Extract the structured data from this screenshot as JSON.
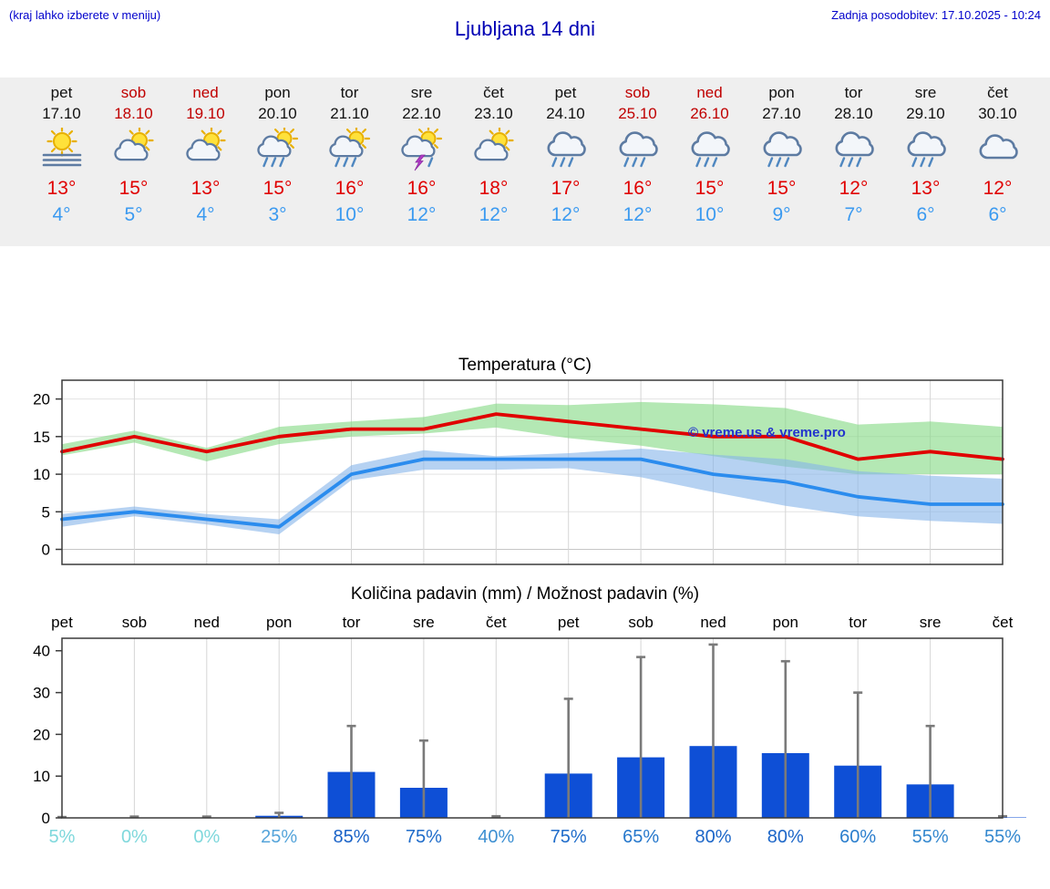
{
  "header": {
    "hint": "(kraj lahko izberete v meniju)",
    "title": "Ljubljana 14 dni",
    "updated": "Zadnja posodobitev: 17.10.2025 - 10:24"
  },
  "forecast": {
    "days": [
      {
        "day": "pet",
        "date": "17.10",
        "weekend": false,
        "icon": "sun-fog",
        "high": "13°",
        "low": "4°"
      },
      {
        "day": "sob",
        "date": "18.10",
        "weekend": true,
        "icon": "partly-cloudy",
        "high": "15°",
        "low": "5°"
      },
      {
        "day": "ned",
        "date": "19.10",
        "weekend": true,
        "icon": "partly-cloudy",
        "high": "13°",
        "low": "4°"
      },
      {
        "day": "pon",
        "date": "20.10",
        "weekend": false,
        "icon": "sun-rain",
        "high": "15°",
        "low": "3°"
      },
      {
        "day": "tor",
        "date": "21.10",
        "weekend": false,
        "icon": "sun-rain",
        "high": "16°",
        "low": "10°"
      },
      {
        "day": "sre",
        "date": "22.10",
        "weekend": false,
        "icon": "sun-thunder",
        "high": "16°",
        "low": "12°"
      },
      {
        "day": "čet",
        "date": "23.10",
        "weekend": false,
        "icon": "partly-cloudy",
        "high": "18°",
        "low": "12°"
      },
      {
        "day": "pet",
        "date": "24.10",
        "weekend": false,
        "icon": "rain",
        "high": "17°",
        "low": "12°"
      },
      {
        "day": "sob",
        "date": "25.10",
        "weekend": true,
        "icon": "rain",
        "high": "16°",
        "low": "12°"
      },
      {
        "day": "ned",
        "date": "26.10",
        "weekend": true,
        "icon": "rain",
        "high": "15°",
        "low": "10°"
      },
      {
        "day": "pon",
        "date": "27.10",
        "weekend": false,
        "icon": "rain",
        "high": "15°",
        "low": "9°"
      },
      {
        "day": "tor",
        "date": "28.10",
        "weekend": false,
        "icon": "rain",
        "high": "12°",
        "low": "7°"
      },
      {
        "day": "sre",
        "date": "29.10",
        "weekend": false,
        "icon": "rain",
        "high": "13°",
        "low": "6°"
      },
      {
        "day": "čet",
        "date": "30.10",
        "weekend": false,
        "icon": "cloudy",
        "high": "12°",
        "low": "6°"
      }
    ]
  },
  "chart_data": [
    {
      "type": "line",
      "title": "Temperatura (°C)",
      "categories": [
        "17.10",
        "18.10",
        "19.10",
        "20.10",
        "21.10",
        "22.10",
        "23.10",
        "24.10",
        "25.10",
        "26.10",
        "27.10",
        "28.10",
        "29.10",
        "30.10"
      ],
      "series": [
        {
          "name": "max temperature",
          "color": "#e00000",
          "band_color": "#82d882",
          "values": [
            13,
            15,
            13,
            15,
            16,
            16,
            18,
            17,
            16,
            15,
            15,
            12,
            13,
            12
          ],
          "band_upper": [
            14,
            15.8,
            13.5,
            16.3,
            17,
            17.6,
            19.4,
            19.2,
            19.6,
            19.3,
            18.8,
            16.6,
            17,
            16.3
          ],
          "band_lower": [
            12.5,
            14.2,
            11.7,
            14,
            15,
            15.4,
            16.2,
            14.8,
            13.8,
            12.4,
            11,
            10,
            10,
            10
          ]
        },
        {
          "name": "min temperature",
          "color": "#2b8cee",
          "band_color": "#86b4ea",
          "values": [
            4,
            5,
            4,
            3,
            10,
            12,
            12,
            12,
            12,
            10,
            9,
            7,
            6,
            6
          ],
          "band_upper": [
            4.7,
            5.7,
            4.7,
            4,
            11.2,
            13.2,
            12.4,
            12.8,
            13.4,
            12.6,
            12,
            10.4,
            9.8,
            9.4
          ],
          "band_lower": [
            3,
            4.4,
            3.3,
            2,
            9.2,
            10.6,
            10.6,
            10.8,
            9.6,
            7.6,
            5.8,
            4.4,
            3.8,
            3.4
          ]
        }
      ],
      "ylim": [
        -2,
        22.5
      ],
      "yticks": [
        0,
        5,
        10,
        15,
        20
      ],
      "grid": true,
      "watermark": "© vreme.us & vreme.pro"
    },
    {
      "type": "bar",
      "title": "Količina padavin (mm) / Možnost padavin (%)",
      "categories": [
        "pet",
        "sob",
        "ned",
        "pon",
        "tor",
        "sre",
        "čet",
        "pet",
        "sob",
        "ned",
        "pon",
        "tor",
        "sre",
        "čet"
      ],
      "values": [
        0,
        0.1,
        0.1,
        0.5,
        11,
        7.2,
        0.1,
        10.6,
        14.5,
        17.2,
        15.5,
        12.5,
        8,
        0.1
      ],
      "whisker_max": [
        0.2,
        0.3,
        0.3,
        1.2,
        22,
        18.5,
        0.4,
        28.5,
        38.5,
        41.5,
        37.5,
        30,
        22,
        0.4
      ],
      "probabilities": [
        {
          "label": "5%",
          "color": "#7fd8dc"
        },
        {
          "label": "0%",
          "color": "#7fd8dc"
        },
        {
          "label": "0%",
          "color": "#7fd8dc"
        },
        {
          "label": "25%",
          "color": "#55a4da"
        },
        {
          "label": "85%",
          "color": "#1a63c8"
        },
        {
          "label": "75%",
          "color": "#1f6cca"
        },
        {
          "label": "40%",
          "color": "#3e90d2"
        },
        {
          "label": "75%",
          "color": "#1f6cca"
        },
        {
          "label": "65%",
          "color": "#2678cc"
        },
        {
          "label": "80%",
          "color": "#1c66c8"
        },
        {
          "label": "80%",
          "color": "#1c66c8"
        },
        {
          "label": "60%",
          "color": "#2b7ecd"
        },
        {
          "label": "55%",
          "color": "#3488cf"
        },
        {
          "label": "55%",
          "color": "#3488cf"
        }
      ],
      "ylim": [
        0,
        43
      ],
      "yticks": [
        0,
        10,
        20,
        30,
        40
      ],
      "bar_color": "#0e4fd6",
      "whisker_color": "#7a7a7a",
      "grid": true
    }
  ]
}
